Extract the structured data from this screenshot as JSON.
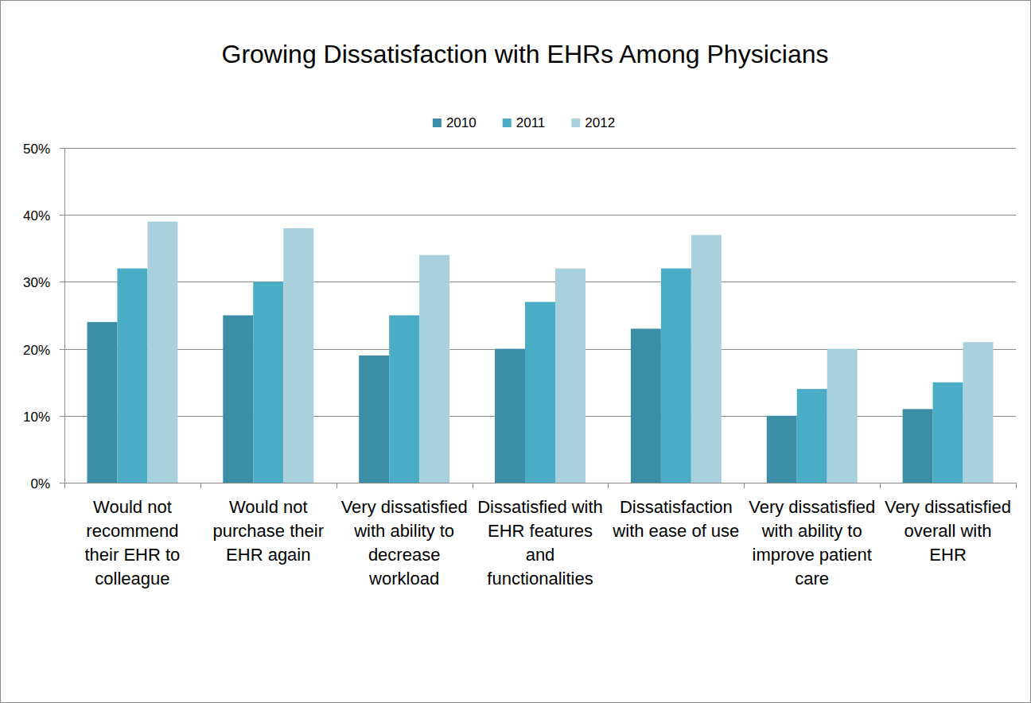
{
  "chart_data": {
    "type": "bar",
    "title": "Growing Dissatisfaction with EHRs Among Physicians",
    "categories": [
      "Would not recommend their EHR to colleague",
      "Would not purchase their EHR again",
      "Very dissatisfied with ability to decrease workload",
      "Dissatisfied with EHR features and functionalities",
      "Dissatisfaction with ease of use",
      "Very dissatisfied with ability to improve patient care",
      "Very dissatisfied overall with EHR"
    ],
    "series": [
      {
        "name": "2010",
        "color": "#3b8ea5",
        "values": [
          24,
          25,
          19,
          20,
          23,
          10,
          11
        ]
      },
      {
        "name": "2011",
        "color": "#4bacc6",
        "values": [
          32,
          30,
          25,
          27,
          32,
          14,
          15
        ]
      },
      {
        "name": "2012",
        "color": "#a9d0dd",
        "values": [
          39,
          38,
          34,
          32,
          37,
          20,
          21
        ]
      }
    ],
    "ylim": [
      0,
      50
    ],
    "yticks": [
      {
        "value": 0,
        "label": "0%"
      },
      {
        "value": 10,
        "label": "10%"
      },
      {
        "value": 20,
        "label": "20%"
      },
      {
        "value": 30,
        "label": "30%"
      },
      {
        "value": 40,
        "label": "40%"
      },
      {
        "value": 50,
        "label": "50%"
      }
    ],
    "grid": true,
    "legend": "top"
  }
}
